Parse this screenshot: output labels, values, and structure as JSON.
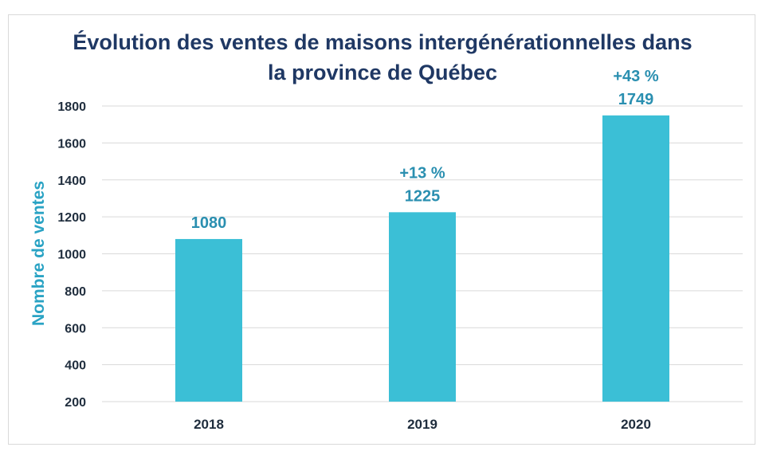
{
  "chart_data": {
    "type": "bar",
    "title_line1": "Évolution des ventes de maisons intergénérationnelles dans",
    "title_line2": "la province de Québec",
    "ylabel": "Nombre de ventes",
    "xlabel": "",
    "categories": [
      "2018",
      "2019",
      "2020"
    ],
    "values": [
      1080,
      1225,
      1749
    ],
    "growth_labels": [
      "",
      "+13 %",
      "+43 %"
    ],
    "ylim": [
      200,
      1800
    ],
    "yticks": [
      200,
      400,
      600,
      800,
      1000,
      1200,
      1400,
      1600,
      1800
    ],
    "grid": true,
    "bar_color": "#3bbfd6",
    "title_color": "#1f3864",
    "accent_color": "#2aa3c4"
  }
}
